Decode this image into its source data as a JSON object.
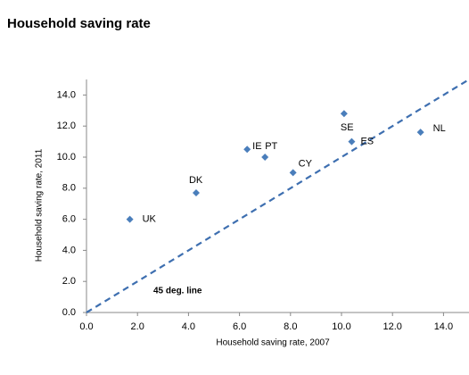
{
  "chart_data": {
    "type": "scatter",
    "title": "Household saving rate",
    "x_label": "Household saving rate, 2007",
    "y_label": "Household saving rate, 2011",
    "annotation": "45 deg. line",
    "labels": [
      "UK",
      "DK",
      "IE",
      "PT",
      "CY",
      "SE",
      "ES",
      "NL"
    ],
    "x": [
      1.7,
      4.3,
      6.3,
      7.0,
      8.1,
      10.1,
      10.4,
      13.1
    ],
    "y": [
      6.0,
      7.7,
      10.5,
      10.0,
      9.0,
      12.8,
      11.0,
      11.6
    ],
    "color": "#4a7ebb",
    "line_color": "#3e6fb0",
    "xlim": [
      0,
      15
    ],
    "ylim": [
      0,
      15
    ],
    "xticks": [
      {
        "value": 0,
        "label": "0.0"
      },
      {
        "value": 2,
        "label": "2.0"
      },
      {
        "value": 4,
        "label": "4.0"
      },
      {
        "value": 6,
        "label": "6.0"
      },
      {
        "value": 8,
        "label": "8.0"
      },
      {
        "value": 10,
        "label": "10.0"
      },
      {
        "value": 12,
        "label": "12.0"
      },
      {
        "value": 14,
        "label": "14.0"
      }
    ],
    "yticks": [
      {
        "value": 0,
        "label": "0.0"
      },
      {
        "value": 2,
        "label": "2.0"
      },
      {
        "value": 4,
        "label": "4.0"
      },
      {
        "value": 6,
        "label": "6.0"
      },
      {
        "value": 8,
        "label": "8.0"
      },
      {
        "value": 10,
        "label": "10.0"
      },
      {
        "value": 12,
        "label": "12.0"
      },
      {
        "value": 14,
        "label": "14.0"
      }
    ]
  }
}
